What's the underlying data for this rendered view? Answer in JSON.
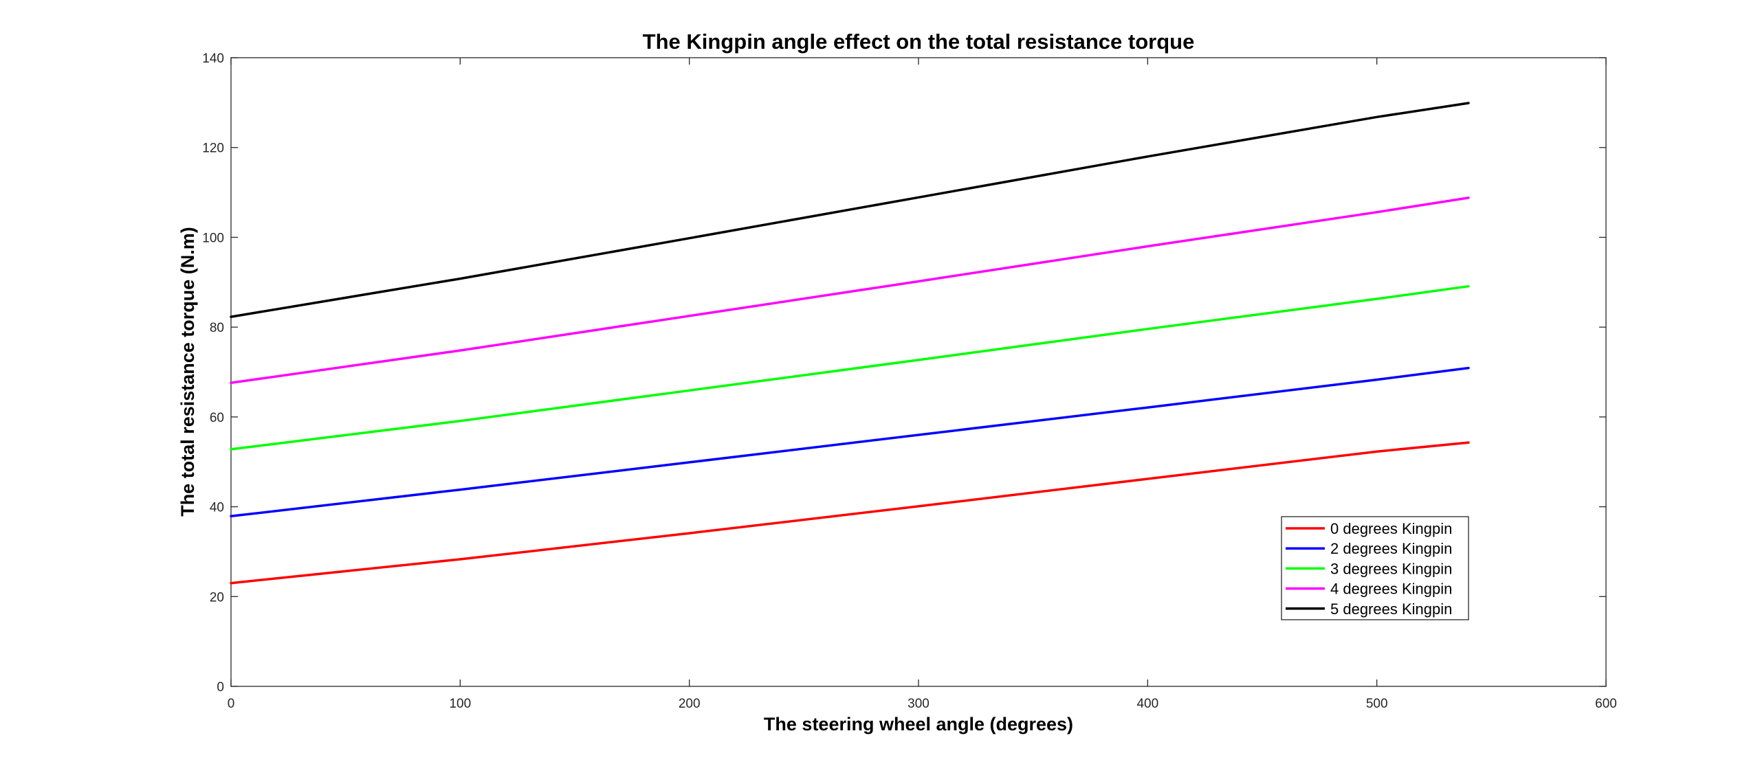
{
  "chart_data": {
    "type": "line",
    "title": "The Kingpin angle effect on the total resistance torque",
    "xlabel": "The steering wheel angle (degrees)",
    "ylabel": "The total resistance torque (N.m)",
    "xlim": [
      0,
      600
    ],
    "ylim": [
      0,
      140
    ],
    "xticks": [
      0,
      100,
      200,
      300,
      400,
      500,
      600
    ],
    "yticks": [
      0,
      20,
      40,
      60,
      80,
      100,
      120,
      140
    ],
    "grid": false,
    "legend_position": "lower-right",
    "series": [
      {
        "name": "0 degrees Kingpin",
        "color": "#ff0000",
        "x": [
          0,
          100,
          200,
          300,
          400,
          500,
          540
        ],
        "y": [
          23,
          28.3,
          34.1,
          40.1,
          46.2,
          52.3,
          54.3
        ]
      },
      {
        "name": "2 degrees Kingpin",
        "color": "#0000ff",
        "x": [
          0,
          100,
          200,
          300,
          400,
          500,
          540
        ],
        "y": [
          37.9,
          43.8,
          49.9,
          56.0,
          62.1,
          68.3,
          70.9
        ]
      },
      {
        "name": "3 degrees Kingpin",
        "color": "#00ff00",
        "x": [
          0,
          100,
          200,
          300,
          400,
          500,
          540
        ],
        "y": [
          52.8,
          59.1,
          65.9,
          72.7,
          79.6,
          86.3,
          89.1
        ]
      },
      {
        "name": "4 degrees Kingpin",
        "color": "#ff00ff",
        "x": [
          0,
          100,
          200,
          300,
          400,
          500,
          540
        ],
        "y": [
          67.6,
          74.8,
          82.5,
          90.2,
          98.0,
          105.6,
          108.8
        ]
      },
      {
        "name": "5 degrees Kingpin",
        "color": "#000000",
        "x": [
          0,
          100,
          200,
          300,
          400,
          500,
          540
        ],
        "y": [
          82.3,
          90.8,
          99.8,
          108.9,
          118.0,
          126.8,
          129.9
        ]
      }
    ]
  }
}
